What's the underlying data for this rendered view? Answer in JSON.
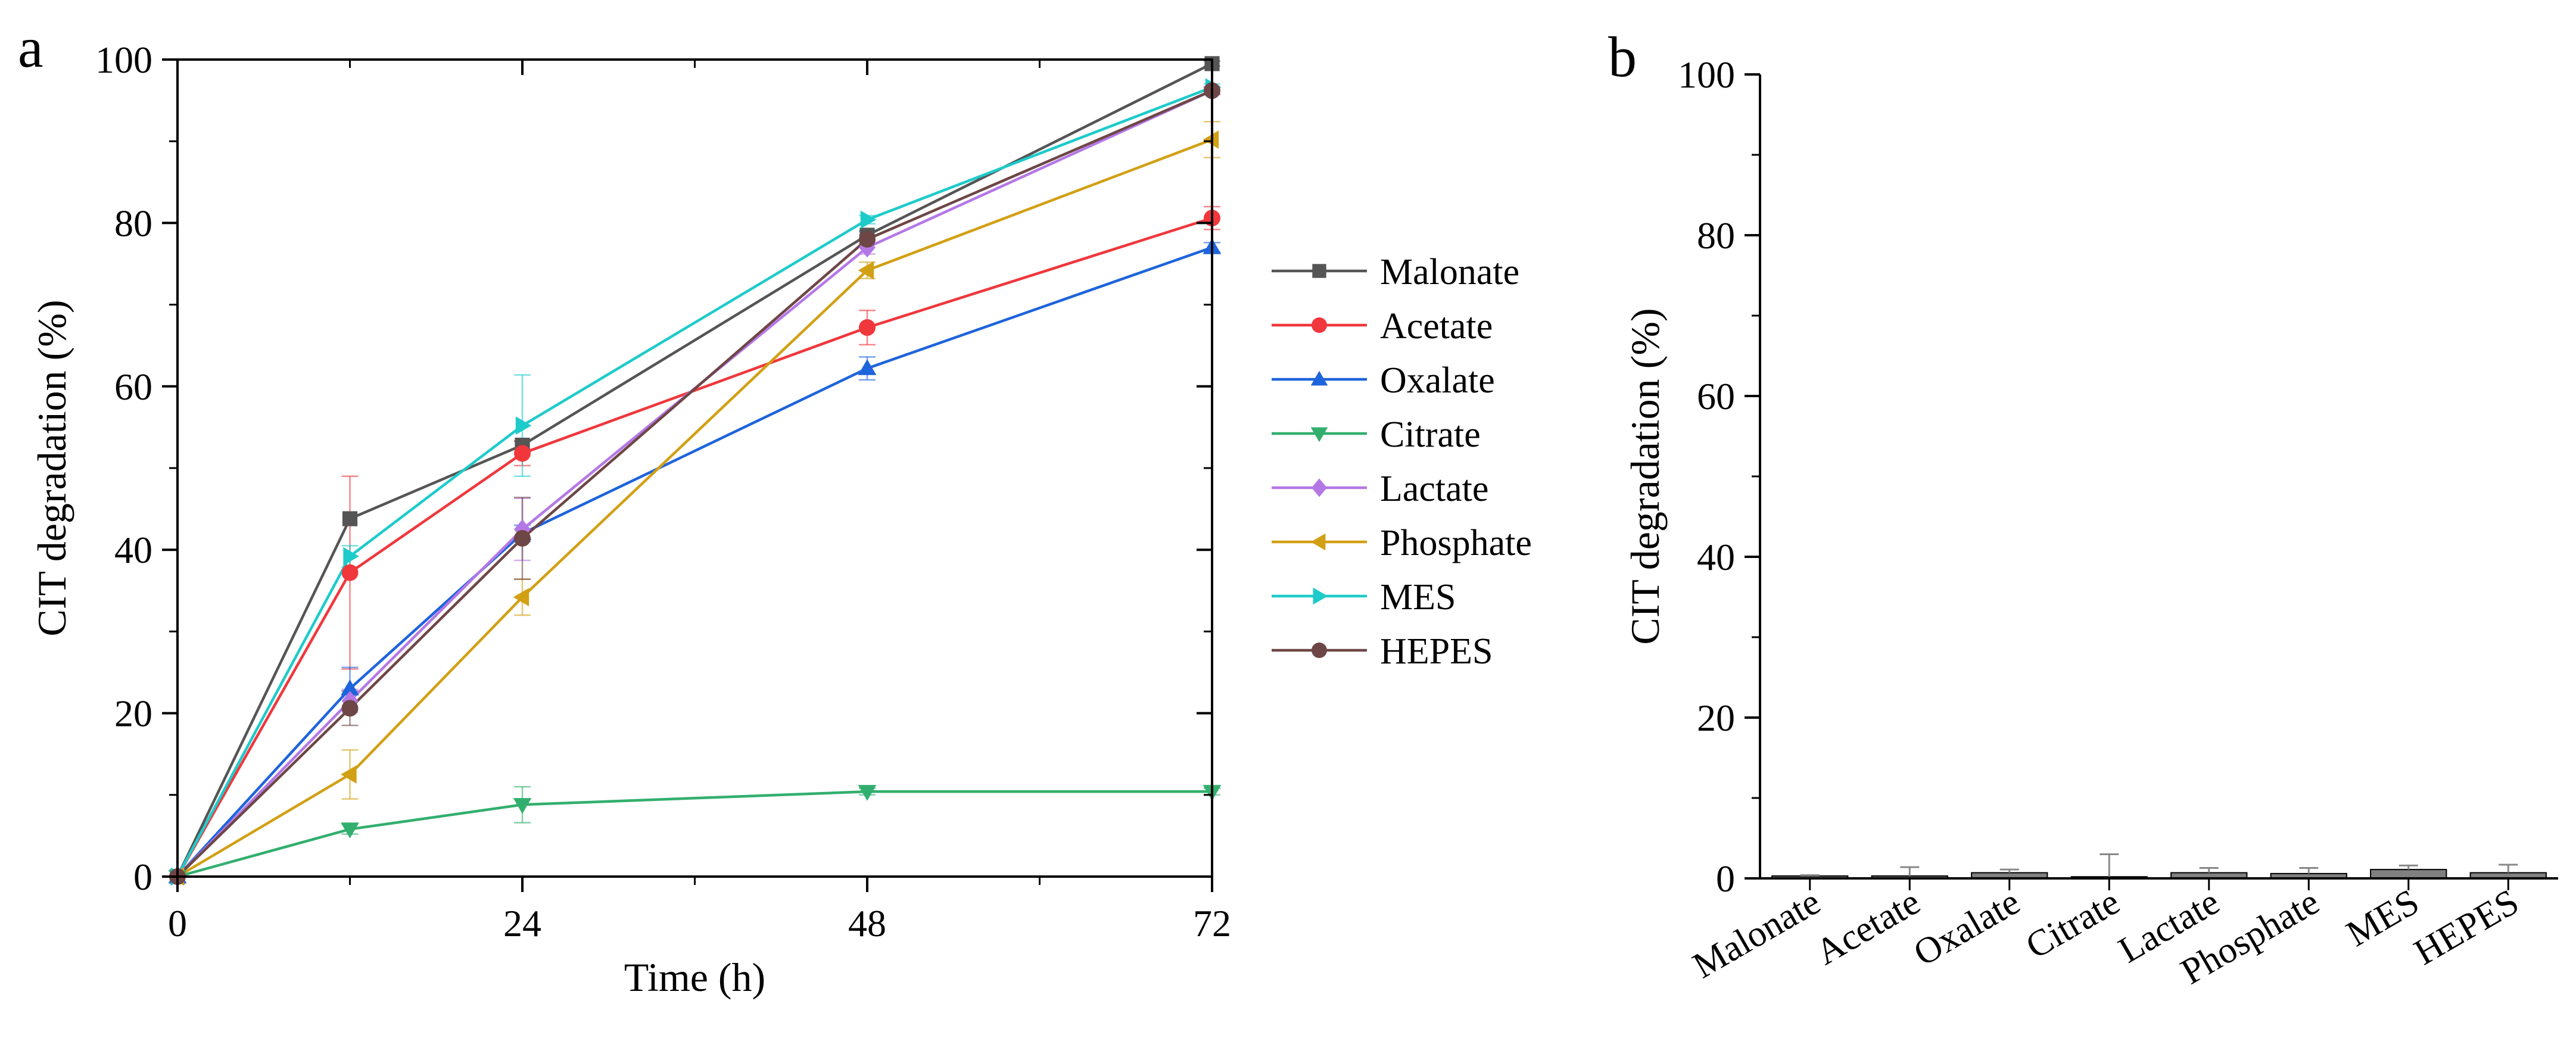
{
  "panel_a": {
    "letter": "a"
  },
  "panel_b": {
    "letter": "b"
  },
  "chart_data": [
    {
      "type": "line",
      "title": "",
      "xlabel": "Time (h)",
      "ylabel": "CIT degradation (%)",
      "xlim": [
        0,
        72
      ],
      "ylim": [
        0,
        100
      ],
      "xticks": [
        0,
        24,
        48,
        72
      ],
      "xtick_labels": [
        "0",
        "24",
        "48",
        "72"
      ],
      "yticks": [
        0,
        20,
        40,
        60,
        80,
        100
      ],
      "ytick_labels": [
        "0",
        "20",
        "40",
        "60",
        "80",
        "100"
      ],
      "x": [
        0,
        12,
        24,
        48,
        72
      ],
      "grid": false,
      "legend": "right",
      "series": [
        {
          "name": "Malonate",
          "color": "#555555",
          "marker": "square",
          "values": [
            0,
            43.8,
            52.8,
            78.5,
            99.5
          ],
          "errors": [
            0,
            0,
            0.5,
            0.5,
            0.3
          ]
        },
        {
          "name": "Acetate",
          "color": "#f0373c",
          "marker": "circle",
          "values": [
            0,
            37.2,
            51.8,
            67.2,
            80.6
          ],
          "errors": [
            0,
            11.8,
            1.5,
            2.1,
            1.4
          ]
        },
        {
          "name": "Oxalate",
          "color": "#1e64dc",
          "marker": "triangle-up",
          "values": [
            0,
            23.0,
            42.0,
            62.2,
            77.0
          ],
          "errors": [
            0,
            2.6,
            1.0,
            1.4,
            0.6
          ]
        },
        {
          "name": "Citrate",
          "color": "#32af6e",
          "marker": "triangle-down",
          "values": [
            0,
            5.8,
            8.8,
            10.4,
            10.4
          ],
          "errors": [
            0,
            0.6,
            2.2,
            0.4,
            0.4
          ]
        },
        {
          "name": "Lactate",
          "color": "#b478e6",
          "marker": "diamond",
          "values": [
            0,
            21.5,
            42.5,
            77.0,
            96.2
          ],
          "errors": [
            0,
            1.4,
            3.8,
            0.8,
            0.5
          ]
        },
        {
          "name": "Phosphate",
          "color": "#d2a014",
          "marker": "triangle-left",
          "values": [
            0,
            12.5,
            34.2,
            74.2,
            90.2
          ],
          "errors": [
            0,
            3.0,
            2.2,
            1.0,
            2.2
          ]
        },
        {
          "name": "MES",
          "color": "#1ecbcb",
          "marker": "triangle-right",
          "values": [
            0,
            39.2,
            55.2,
            80.4,
            96.6
          ],
          "errors": [
            0,
            1.3,
            6.2,
            0.5,
            0.4
          ]
        },
        {
          "name": "HEPES",
          "color": "#6e4646",
          "marker": "circle",
          "values": [
            0,
            20.6,
            41.4,
            78.0,
            96.2
          ],
          "errors": [
            0,
            2.1,
            5.0,
            0.5,
            0.4
          ]
        }
      ]
    },
    {
      "type": "bar",
      "title": "",
      "xlabel": "",
      "ylabel": "CIT degradation (%)",
      "ylim": [
        0,
        100
      ],
      "yticks": [
        0,
        20,
        40,
        60,
        80,
        100
      ],
      "ytick_labels": [
        "0",
        "20",
        "40",
        "60",
        "80",
        "100"
      ],
      "categories": [
        "Malonate",
        "Acetate",
        "Oxalate",
        "Citrate",
        "Lactate",
        "Phosphate",
        "MES",
        "HEPES"
      ],
      "values": [
        0.3,
        0.3,
        0.7,
        0.2,
        0.7,
        0.6,
        1.1,
        0.7
      ],
      "errors": [
        0.1,
        1.1,
        0.4,
        2.8,
        0.6,
        0.7,
        0.5,
        1.0
      ],
      "bar_color": "#808080",
      "grid": false
    }
  ]
}
